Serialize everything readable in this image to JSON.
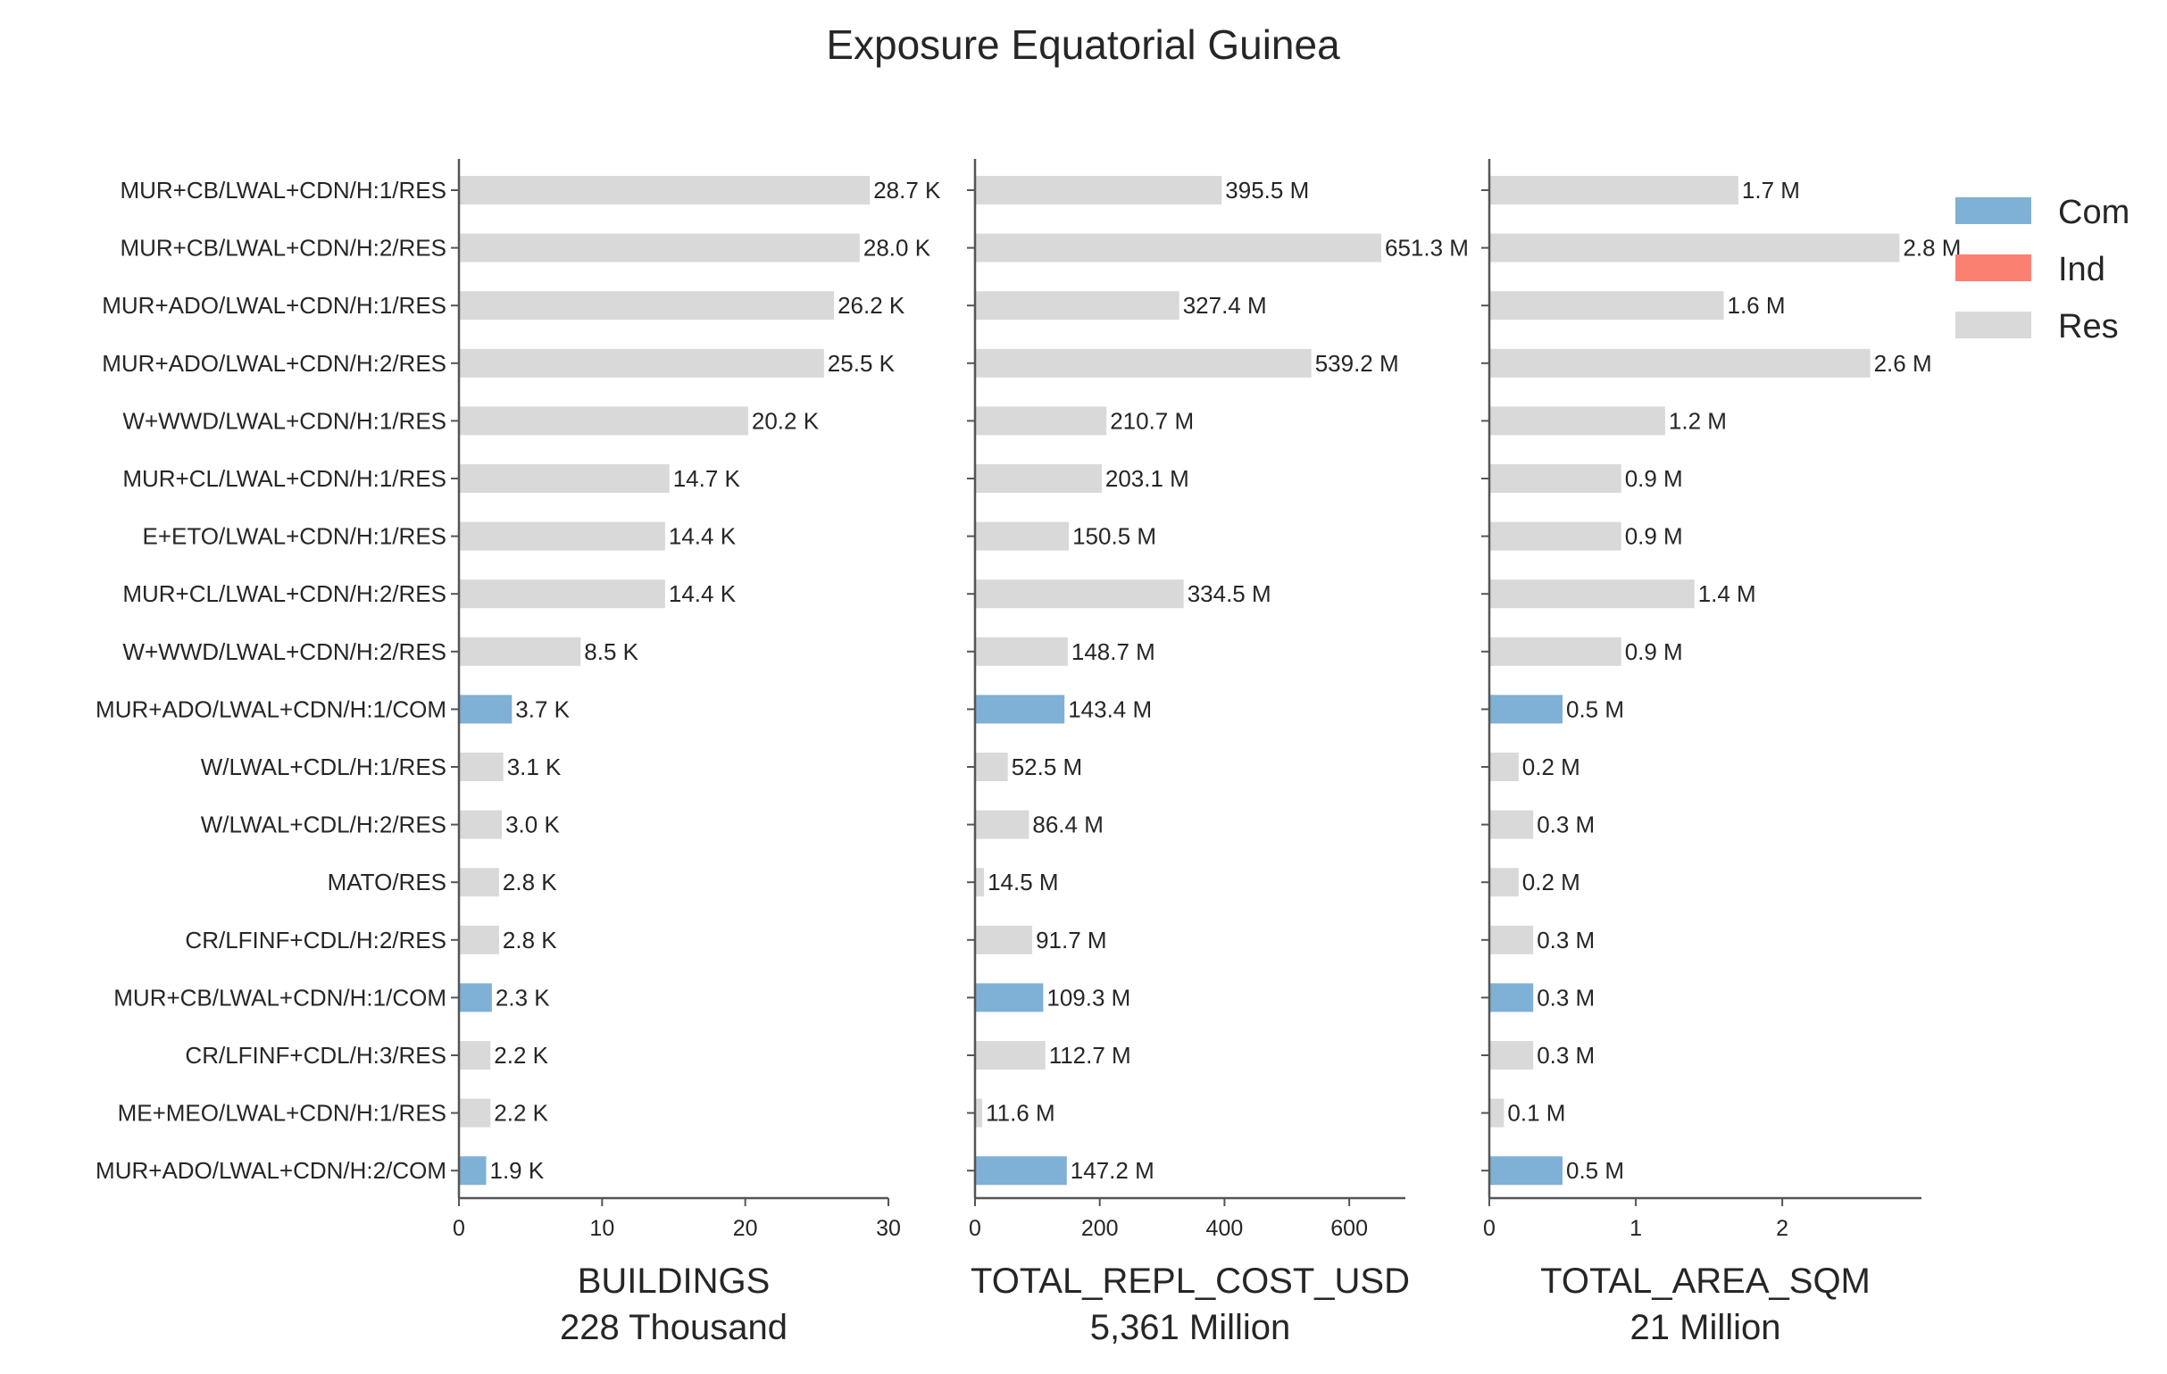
{
  "chart_data": {
    "type": "bar",
    "orientation": "horizontal",
    "title": "Exposure Equatorial Guinea",
    "categories": [
      "MUR+CB/LWAL+CDN/H:1/RES",
      "MUR+CB/LWAL+CDN/H:2/RES",
      "MUR+ADO/LWAL+CDN/H:1/RES",
      "MUR+ADO/LWAL+CDN/H:2/RES",
      "W+WWD/LWAL+CDN/H:1/RES",
      "MUR+CL/LWAL+CDN/H:1/RES",
      "E+ETO/LWAL+CDN/H:1/RES",
      "MUR+CL/LWAL+CDN/H:2/RES",
      "W+WWD/LWAL+CDN/H:2/RES",
      "MUR+ADO/LWAL+CDN/H:1/COM",
      "W/LWAL+CDL/H:1/RES",
      "W/LWAL+CDL/H:2/RES",
      "MATO/RES",
      "CR/LFINF+CDL/H:2/RES",
      "MUR+CB/LWAL+CDN/H:1/COM",
      "CR/LFINF+CDL/H:3/RES",
      "ME+MEO/LWAL+CDN/H:1/RES",
      "MUR+ADO/LWAL+CDN/H:2/COM"
    ],
    "occupancy": [
      "Res",
      "Res",
      "Res",
      "Res",
      "Res",
      "Res",
      "Res",
      "Res",
      "Res",
      "Com",
      "Res",
      "Res",
      "Res",
      "Res",
      "Com",
      "Res",
      "Res",
      "Com"
    ],
    "legend": {
      "placement": "top-right",
      "entries": [
        {
          "name": "Com",
          "color": "#7fb0d5"
        },
        {
          "name": "Ind",
          "color": "#fa8072"
        },
        {
          "name": "Res",
          "color": "#d9d9d9"
        }
      ]
    },
    "panels": [
      {
        "xlabel": "BUILDINGS",
        "total_label": "228 Thousand",
        "xlim": [
          0,
          30
        ],
        "ticks": [
          0,
          10,
          20,
          30
        ],
        "tick_labels": [
          "0",
          "10",
          "20",
          "30"
        ],
        "values": [
          28.7,
          28.0,
          26.2,
          25.5,
          20.2,
          14.7,
          14.4,
          14.4,
          8.5,
          3.7,
          3.1,
          3.0,
          2.8,
          2.8,
          2.3,
          2.2,
          2.2,
          1.9
        ],
        "value_labels": [
          "28.7 K",
          "28.0 K",
          "26.2 K",
          "25.5 K",
          "20.2 K",
          "14.7 K",
          "14.4 K",
          "14.4 K",
          "8.5 K",
          "3.7 K",
          "3.1 K",
          "3.0 K",
          "2.8 K",
          "2.8 K",
          "2.3 K",
          "2.2 K",
          "2.2 K",
          "1.9 K"
        ]
      },
      {
        "xlabel": "TOTAL_REPL_COST_USD",
        "total_label": "5,361 Million",
        "xlim": [
          0,
          690
        ],
        "ticks": [
          0,
          200,
          400,
          600
        ],
        "tick_labels": [
          "0",
          "200",
          "400",
          "600"
        ],
        "values": [
          395.5,
          651.3,
          327.4,
          539.2,
          210.7,
          203.1,
          150.5,
          334.5,
          148.7,
          143.4,
          52.5,
          86.4,
          14.5,
          91.7,
          109.3,
          112.7,
          11.6,
          147.2
        ],
        "value_labels": [
          "395.5 M",
          "651.3 M",
          "327.4 M",
          "539.2 M",
          "210.7 M",
          "203.1 M",
          "150.5 M",
          "334.5 M",
          "148.7 M",
          "143.4 M",
          "52.5 M",
          "86.4 M",
          "14.5 M",
          "91.7 M",
          "109.3 M",
          "112.7 M",
          "11.6 M",
          "147.2 M"
        ]
      },
      {
        "xlabel": "TOTAL_AREA_SQM",
        "total_label": "21 Million",
        "xlim": [
          0,
          2.95
        ],
        "ticks": [
          0,
          1,
          2
        ],
        "tick_labels": [
          "0",
          "1",
          "2"
        ],
        "values": [
          1.7,
          2.8,
          1.6,
          2.6,
          1.2,
          0.9,
          0.9,
          1.4,
          0.9,
          0.5,
          0.2,
          0.3,
          0.2,
          0.3,
          0.3,
          0.3,
          0.1,
          0.5
        ],
        "value_labels": [
          "1.7 M",
          "2.8 M",
          "1.6 M",
          "2.6 M",
          "1.2 M",
          "0.9 M",
          "0.9 M",
          "1.4 M",
          "0.9 M",
          "0.5 M",
          "0.2 M",
          "0.3 M",
          "0.2 M",
          "0.3 M",
          "0.3 M",
          "0.3 M",
          "0.1 M",
          "0.5 M"
        ]
      }
    ]
  }
}
